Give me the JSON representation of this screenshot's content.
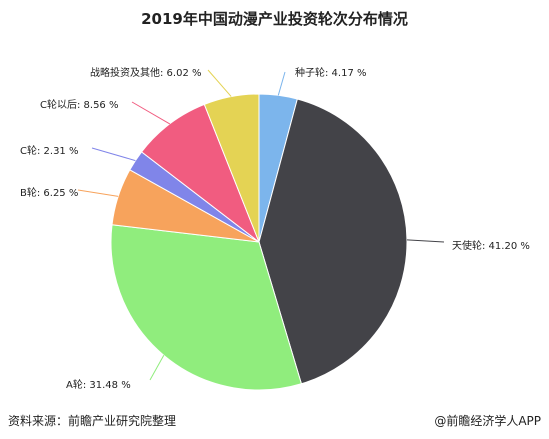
{
  "title": "2019年中国动漫产业投资轮次分布情况",
  "footer": {
    "source": "资料来源：前瞻产业研究院整理",
    "brand": "@前瞻经济学人APP"
  },
  "chart_data": {
    "type": "pie",
    "title": "2019年中国动漫产业投资轮次分布情况",
    "slices": [
      {
        "label": "种子轮",
        "value": 4.17,
        "display": "种子轮: 4.17 %",
        "color": "#7cb5ec"
      },
      {
        "label": "天使轮",
        "value": 41.2,
        "display": "天使轮: 41.20 %",
        "color": "#434348"
      },
      {
        "label": "A轮",
        "value": 31.48,
        "display": "A轮: 31.48 %",
        "color": "#90ed7d"
      },
      {
        "label": "B轮",
        "value": 6.25,
        "display": "B轮: 6.25 %",
        "color": "#f7a35c"
      },
      {
        "label": "C轮",
        "value": 2.31,
        "display": "C轮: 2.31 %",
        "color": "#8085e9"
      },
      {
        "label": "C轮以后",
        "value": 8.56,
        "display": "C轮以后: 8.56 %",
        "color": "#f15c80"
      },
      {
        "label": "战略投资及其他",
        "value": 6.02,
        "display": "战略投资及其他: 6.02 %",
        "color": "#e4d354"
      }
    ]
  }
}
